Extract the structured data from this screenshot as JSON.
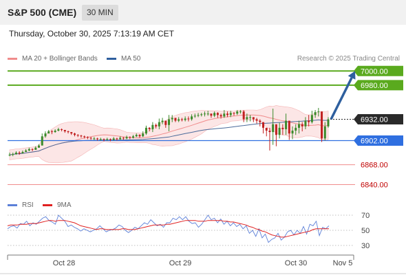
{
  "header": {
    "symbol": "S&P 500 (CME)",
    "interval": "30 MIN",
    "timestamp": "Thursday, October 30, 2025 7:13:19 AM CET"
  },
  "legend": {
    "ma20_label": "MA 20 + Bollinger Bands",
    "ma50_label": "MA 50",
    "credit": "Research © 2025 Trading Central",
    "rsi_label": "RSI",
    "rsi_ma_label": "9MA"
  },
  "colors": {
    "resistance": "#5aaa1e",
    "support": "#2f6fe0",
    "support_light": "#f08c8c",
    "current": "#222222",
    "ma20": "#f08c8c",
    "bollinger_fill": "#fbdede",
    "ma50": "#4a6a9a",
    "candle_up": "#3a8a2a",
    "candle_down": "#c02020",
    "arrow": "#2e5f9e",
    "rsi": "#5b7fd8",
    "rsi_ma": "#e02020"
  },
  "chart_data": [
    {
      "type": "candlestick",
      "title": "S&P 500 (CME)",
      "interval": "30 MIN",
      "ylim": [
        6825,
        7008
      ],
      "x_labels": [
        "Oct 28",
        "Oct 29",
        "Oct 30",
        "Nov 5"
      ],
      "levels": [
        {
          "label": "7000.00",
          "value": 7000.0,
          "kind": "resistance"
        },
        {
          "label": "6980.00",
          "value": 6980.0,
          "kind": "resistance"
        },
        {
          "label": "6932.00",
          "value": 6932.0,
          "kind": "current"
        },
        {
          "label": "6902.00",
          "value": 6902.0,
          "kind": "support"
        },
        {
          "label": "6868.00",
          "value": 6868.0,
          "kind": "support-light"
        },
        {
          "label": "6840.00",
          "value": 6840.0,
          "kind": "support-light"
        }
      ],
      "close": [
        6882,
        6883,
        6885,
        6884,
        6886,
        6888,
        6890,
        6889,
        6892,
        6895,
        6908,
        6912,
        6915,
        6914,
        6916,
        6918,
        6917,
        6915,
        6914,
        6912,
        6910,
        6909,
        6908,
        6907,
        6906,
        6905,
        6905,
        6904,
        6904,
        6903,
        6904,
        6903,
        6905,
        6904,
        6906,
        6905,
        6907,
        6906,
        6908,
        6910,
        6908,
        6912,
        6920,
        6918,
        6924,
        6922,
        6928,
        6930,
        6924,
        6932,
        6934,
        6930,
        6932,
        6931,
        6933,
        6932,
        6936,
        6937,
        6938,
        6939,
        6940,
        6940,
        6937,
        6941,
        6938,
        6936,
        6940,
        6938,
        6941,
        6940,
        6943,
        6943,
        6932,
        6935,
        6935,
        6932,
        6930,
        6928,
        6920,
        6916,
        6914,
        6925,
        6910,
        6920,
        6918,
        6930,
        6912,
        6916,
        6920,
        6925,
        6922,
        6930,
        6928,
        6938,
        6942,
        6943,
        6905,
        6922,
        6932
      ],
      "high": [
        6885,
        6885,
        6887,
        6887,
        6888,
        6890,
        6892,
        6891,
        6894,
        6897,
        6912,
        6915,
        6917,
        6917,
        6918,
        6920,
        6919,
        6917,
        6916,
        6914,
        6913,
        6911,
        6910,
        6909,
        6908,
        6907,
        6907,
        6906,
        6906,
        6905,
        6906,
        6905,
        6907,
        6906,
        6908,
        6907,
        6909,
        6908,
        6910,
        6912,
        6911,
        6915,
        6923,
        6921,
        6928,
        6926,
        6933,
        6934,
        6929,
        6938,
        6938,
        6934,
        6935,
        6934,
        6936,
        6936,
        6939,
        6940,
        6941,
        6941,
        6943,
        6944,
        6940,
        6943,
        6942,
        6940,
        6945,
        6943,
        6944,
        6942,
        6945,
        6945,
        6945,
        6940,
        6938,
        6935,
        6934,
        6932,
        6926,
        6920,
        6920,
        6947,
        6918,
        6927,
        6925,
        6940,
        6922,
        6922,
        6925,
        6930,
        6928,
        6935,
        6938,
        6944,
        6945,
        6948,
        6940,
        6928,
        6935
      ],
      "low": [
        6880,
        6880,
        6882,
        6882,
        6884,
        6886,
        6887,
        6887,
        6889,
        6892,
        6896,
        6906,
        6912,
        6911,
        6913,
        6915,
        6915,
        6913,
        6912,
        6910,
        6908,
        6907,
        6906,
        6905,
        6904,
        6903,
        6903,
        6902,
        6902,
        6901,
        6902,
        6901,
        6902,
        6902,
        6903,
        6903,
        6904,
        6904,
        6905,
        6907,
        6906,
        6907,
        6910,
        6915,
        6914,
        6919,
        6918,
        6925,
        6920,
        6915,
        6928,
        6928,
        6928,
        6929,
        6929,
        6929,
        6930,
        6934,
        6935,
        6936,
        6936,
        6937,
        6934,
        6935,
        6934,
        6933,
        6934,
        6935,
        6935,
        6937,
        6938,
        6940,
        6928,
        6928,
        6929,
        6928,
        6926,
        6922,
        6912,
        6908,
        6888,
        6896,
        6894,
        6905,
        6910,
        6910,
        6903,
        6904,
        6910,
        6912,
        6915,
        6918,
        6922,
        6926,
        6934,
        6936,
        6900,
        6902,
        6920
      ]
    },
    {
      "type": "line",
      "title": "RSI",
      "series": [
        {
          "name": "RSI"
        },
        {
          "name": "9MA"
        }
      ],
      "ylim": [
        20,
        80
      ],
      "yticks": [
        70,
        50,
        30
      ],
      "rsi_values": [
        52,
        55,
        56,
        53,
        59,
        58,
        62,
        56,
        60,
        58,
        62,
        66,
        68,
        63,
        61,
        58,
        70,
        66,
        62,
        55,
        57,
        54,
        52,
        49,
        52,
        50,
        48,
        50,
        52,
        56,
        52,
        48,
        50,
        51,
        53,
        57,
        55,
        50,
        47,
        50,
        54,
        52,
        56,
        60,
        58,
        64,
        60,
        56,
        58,
        54,
        60,
        60,
        66,
        64,
        68,
        64,
        68,
        62,
        59,
        60,
        54,
        58,
        64,
        70,
        64,
        66,
        60,
        65,
        58,
        62,
        56,
        60,
        55,
        58,
        52,
        56,
        46,
        50,
        42,
        52,
        40,
        45,
        34,
        38,
        40,
        46,
        37,
        41,
        48,
        50,
        44,
        50,
        46,
        55,
        45,
        58,
        56,
        62,
        43,
        54,
        52,
        56
      ],
      "rsi_ma_values": [
        56,
        57,
        57,
        57,
        58,
        58,
        58,
        59,
        59,
        59,
        60,
        61,
        62,
        63,
        63,
        62,
        63,
        63,
        63,
        62,
        61,
        60,
        58,
        56,
        55,
        54,
        53,
        52,
        51,
        52,
        52,
        51,
        51,
        51,
        51,
        51,
        52,
        52,
        51,
        51,
        51,
        52,
        53,
        54,
        55,
        56,
        57,
        57,
        57,
        57,
        58,
        58,
        59,
        60,
        61,
        62,
        63,
        63,
        63,
        63,
        62,
        62,
        62,
        63,
        63,
        63,
        63,
        63,
        62,
        62,
        61,
        61,
        60,
        59,
        58,
        57,
        55,
        54,
        52,
        51,
        49,
        48,
        46,
        44,
        43,
        42,
        41,
        41,
        42,
        43,
        44,
        45,
        46,
        47,
        48,
        49,
        51,
        52,
        52,
        52,
        52,
        52
      ]
    }
  ]
}
